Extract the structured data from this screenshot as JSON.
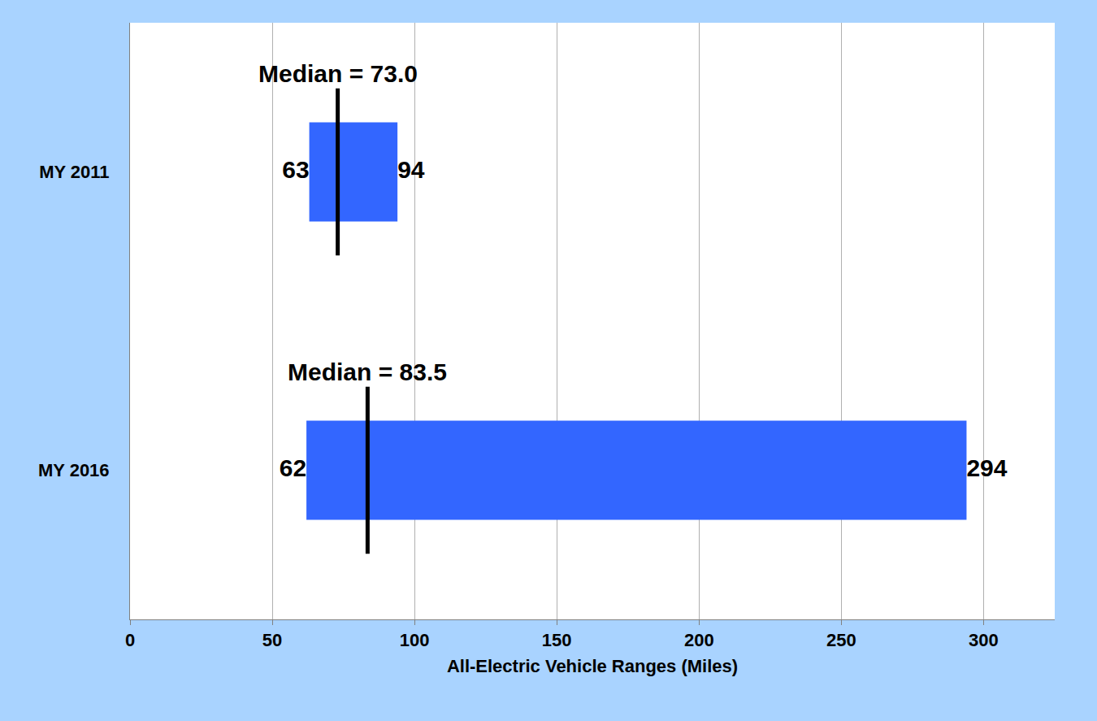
{
  "chart_data": {
    "type": "range_bar",
    "orientation": "horizontal",
    "categories": [
      "MY 2011",
      "MY 2016"
    ],
    "low": [
      63,
      62
    ],
    "high": [
      94,
      294
    ],
    "median": [
      73.0,
      83.5
    ],
    "median_labels": [
      "Median = 73.0",
      "Median = 83.5"
    ],
    "xlabel": "All-Electric Vehicle Ranges (Miles)",
    "xlim": [
      0,
      325
    ],
    "xticks": [
      0,
      50,
      100,
      150,
      200,
      250,
      300
    ],
    "color": "#3366ff",
    "grid": true,
    "data_labels": true
  }
}
